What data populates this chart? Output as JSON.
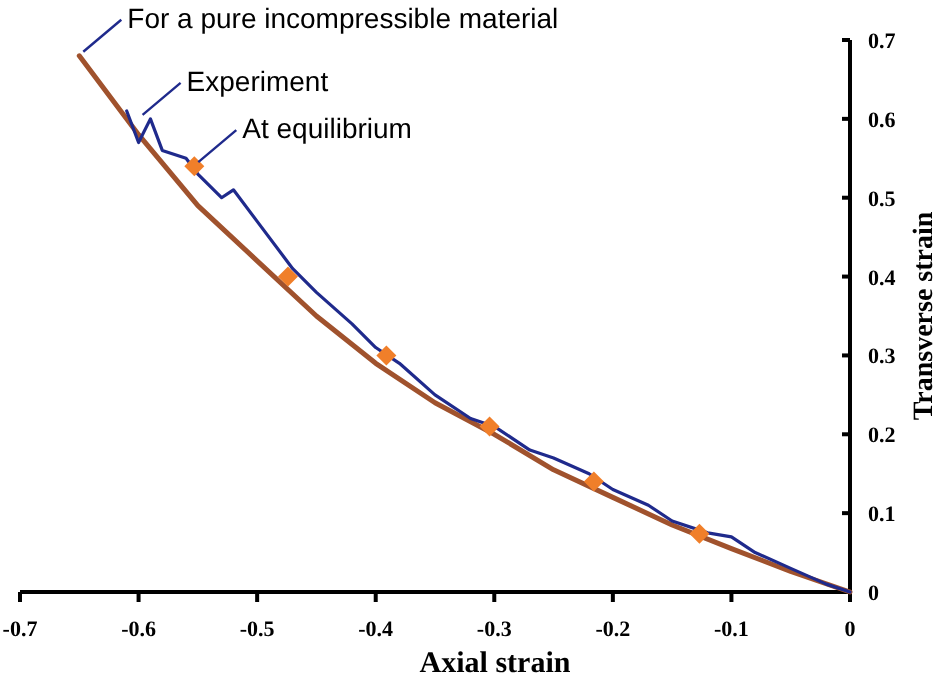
{
  "chart_data": {
    "type": "line",
    "xlabel": "Axial strain",
    "ylabel": "Transverse strain",
    "xlim": [
      -0.7,
      0
    ],
    "ylim": [
      0,
      0.7
    ],
    "xticks": [
      -0.7,
      -0.6,
      -0.5,
      -0.4,
      -0.3,
      -0.2,
      -0.1,
      0
    ],
    "yticks": [
      0,
      0.1,
      0.2,
      0.3,
      0.4,
      0.5,
      0.6,
      0.7
    ],
    "grid": false,
    "series": [
      {
        "color": "#a0522d",
        "x": [
          -0.65,
          -0.6,
          -0.55,
          -0.5,
          -0.45,
          -0.4,
          -0.35,
          -0.3,
          -0.25,
          -0.2,
          -0.15,
          -0.1,
          -0.05,
          0
        ],
        "values": [
          0.68,
          0.58,
          0.49,
          0.42,
          0.35,
          0.29,
          0.24,
          0.2,
          0.155,
          0.12,
          0.085,
          0.055,
          0.026,
          0
        ]
      },
      {
        "color": "#1f2a8c",
        "x": [
          -0.61,
          -0.6,
          -0.59,
          -0.58,
          -0.56,
          -0.55,
          -0.53,
          -0.52,
          -0.5,
          -0.47,
          -0.45,
          -0.42,
          -0.4,
          -0.38,
          -0.35,
          -0.32,
          -0.3,
          -0.27,
          -0.25,
          -0.22,
          -0.2,
          -0.17,
          -0.15,
          -0.12,
          -0.1,
          -0.08,
          -0.05,
          -0.02,
          0
        ],
        "values": [
          0.61,
          0.57,
          0.6,
          0.56,
          0.55,
          0.53,
          0.5,
          0.51,
          0.47,
          0.41,
          0.38,
          0.34,
          0.31,
          0.29,
          0.25,
          0.22,
          0.21,
          0.18,
          0.17,
          0.15,
          0.13,
          0.11,
          0.09,
          0.075,
          0.07,
          0.05,
          0.03,
          0.01,
          0
        ]
      },
      {
        "type": "scatter",
        "color": "#f07f2a",
        "marker": "diamond",
        "x": [
          -0.553,
          -0.474,
          -0.391,
          -0.304,
          -0.216,
          -0.127
        ],
        "values": [
          0.54,
          0.4,
          0.3,
          0.21,
          0.14,
          0.074
        ]
      }
    ],
    "annotations": [
      {
        "text": "For a pure incompressible material",
        "x": -0.65,
        "y": 0.68
      },
      {
        "text": "Experiment",
        "x": -0.6,
        "y": 0.6
      },
      {
        "text": "At equilibrium",
        "x": -0.553,
        "y": 0.54
      }
    ]
  }
}
